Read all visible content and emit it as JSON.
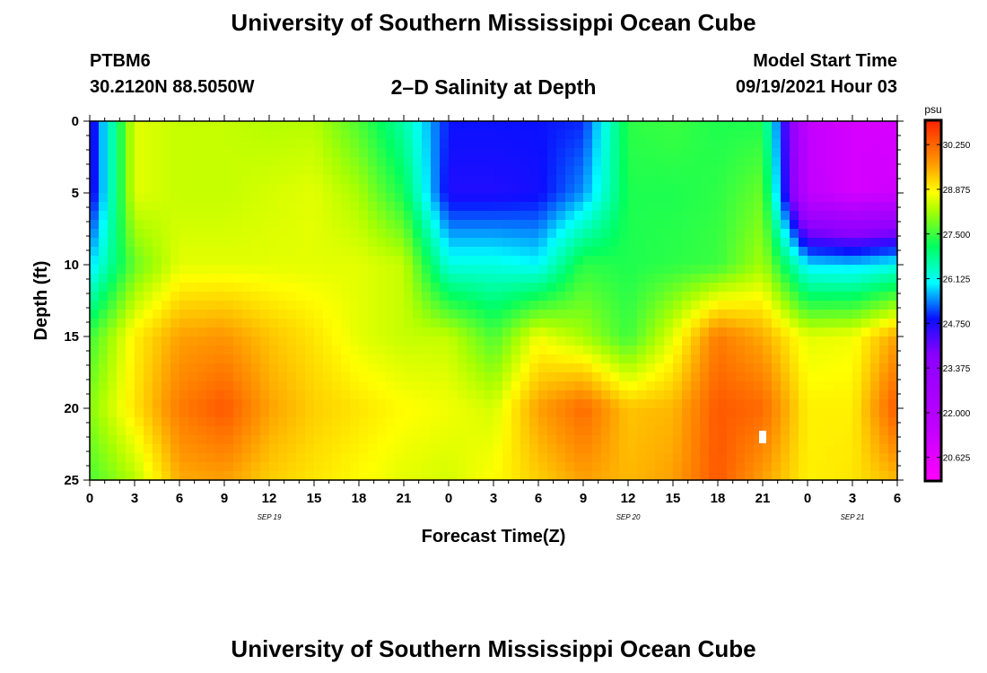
{
  "header": {
    "title": "University of Southern Mississippi Ocean Cube",
    "station": "PTBM6",
    "coordinates": "30.2120N  88.5050W",
    "subtitle": "2–D Salinity at Depth",
    "model_start_label": "Model Start Time",
    "model_start_value": "09/19/2021 Hour 03"
  },
  "footer": {
    "title": "University of Southern Mississippi Ocean Cube"
  },
  "chart_data": {
    "type": "heatmap",
    "title": "2–D Salinity at Depth",
    "xlabel": "Forecast Time(Z)",
    "ylabel": "Depth (ft)",
    "x_range_hours": [
      0,
      54
    ],
    "y_range": [
      0,
      25
    ],
    "x_tick_hours": [
      0,
      3,
      6,
      9,
      12,
      15,
      18,
      21,
      24,
      27,
      30,
      33,
      36,
      39,
      42,
      45,
      48,
      51,
      54
    ],
    "x_tick_labels": [
      "0",
      "3",
      "6",
      "9",
      "12",
      "15",
      "18",
      "21",
      "0",
      "3",
      "6",
      "9",
      "12",
      "15",
      "18",
      "21",
      "0",
      "3",
      "6"
    ],
    "y_ticks": [
      0,
      5,
      10,
      15,
      20,
      25
    ],
    "y_tick_labels": [
      "0",
      "5",
      "10",
      "15",
      "20",
      "25"
    ],
    "date_labels": [
      {
        "hour": 12,
        "text": "SEP 19"
      },
      {
        "hour": 36,
        "text": "SEP 20"
      },
      {
        "hour": 51,
        "text": "SEP 21"
      }
    ],
    "colorbar": {
      "unit": "psu",
      "min": 19.9,
      "max": 31.0,
      "tick_values": [
        30.25,
        28.875,
        27.5,
        26.125,
        24.75,
        23.375,
        22.0,
        20.625
      ],
      "tick_labels": [
        "30.250",
        "28.875",
        "27.500",
        "26.125",
        "24.750",
        "23.375",
        "22.000",
        "20.625"
      ]
    },
    "grid_hours": [
      0,
      3,
      6,
      9,
      12,
      15,
      18,
      21,
      24,
      27,
      30,
      33,
      36,
      39,
      42,
      45,
      48,
      51,
      54
    ],
    "grid_depths": [
      0,
      5,
      10,
      15,
      20,
      25
    ],
    "salinity_psu": [
      [
        24.5,
        28.6,
        28.4,
        28.4,
        28.3,
        28.3,
        27.6,
        26.6,
        24.9,
        24.9,
        24.9,
        25.0,
        27.4,
        27.5,
        27.3,
        27.3,
        21.5,
        21.0,
        21.0
      ],
      [
        24.5,
        28.6,
        28.4,
        28.4,
        28.5,
        28.6,
        28.2,
        27.2,
        24.7,
        24.7,
        24.8,
        25.5,
        27.3,
        27.3,
        27.4,
        27.8,
        21.6,
        21.0,
        21.2
      ],
      [
        25.8,
        27.8,
        28.6,
        28.6,
        28.6,
        28.6,
        28.6,
        28.4,
        26.2,
        26.2,
        26.0,
        27.4,
        27.3,
        27.4,
        27.5,
        28.2,
        25.9,
        25.8,
        26.1
      ],
      [
        27.5,
        28.9,
        29.6,
        29.7,
        29.3,
        29.0,
        28.6,
        28.4,
        28.4,
        27.6,
        28.7,
        28.2,
        27.5,
        28.6,
        30.0,
        29.5,
        28.6,
        28.7,
        29.6
      ],
      [
        28.0,
        29.0,
        30.0,
        30.4,
        29.6,
        29.2,
        29.0,
        28.8,
        28.7,
        28.5,
        29.6,
        30.2,
        29.3,
        29.4,
        30.4,
        30.2,
        28.9,
        28.9,
        30.4
      ],
      [
        27.6,
        28.3,
        29.5,
        29.6,
        29.2,
        29.0,
        28.8,
        28.6,
        28.5,
        28.8,
        29.2,
        29.6,
        29.4,
        29.6,
        30.4,
        29.6,
        28.9,
        29.0,
        29.4
      ]
    ],
    "highlight_marker": {
      "hour": 45,
      "depth": 22
    }
  }
}
